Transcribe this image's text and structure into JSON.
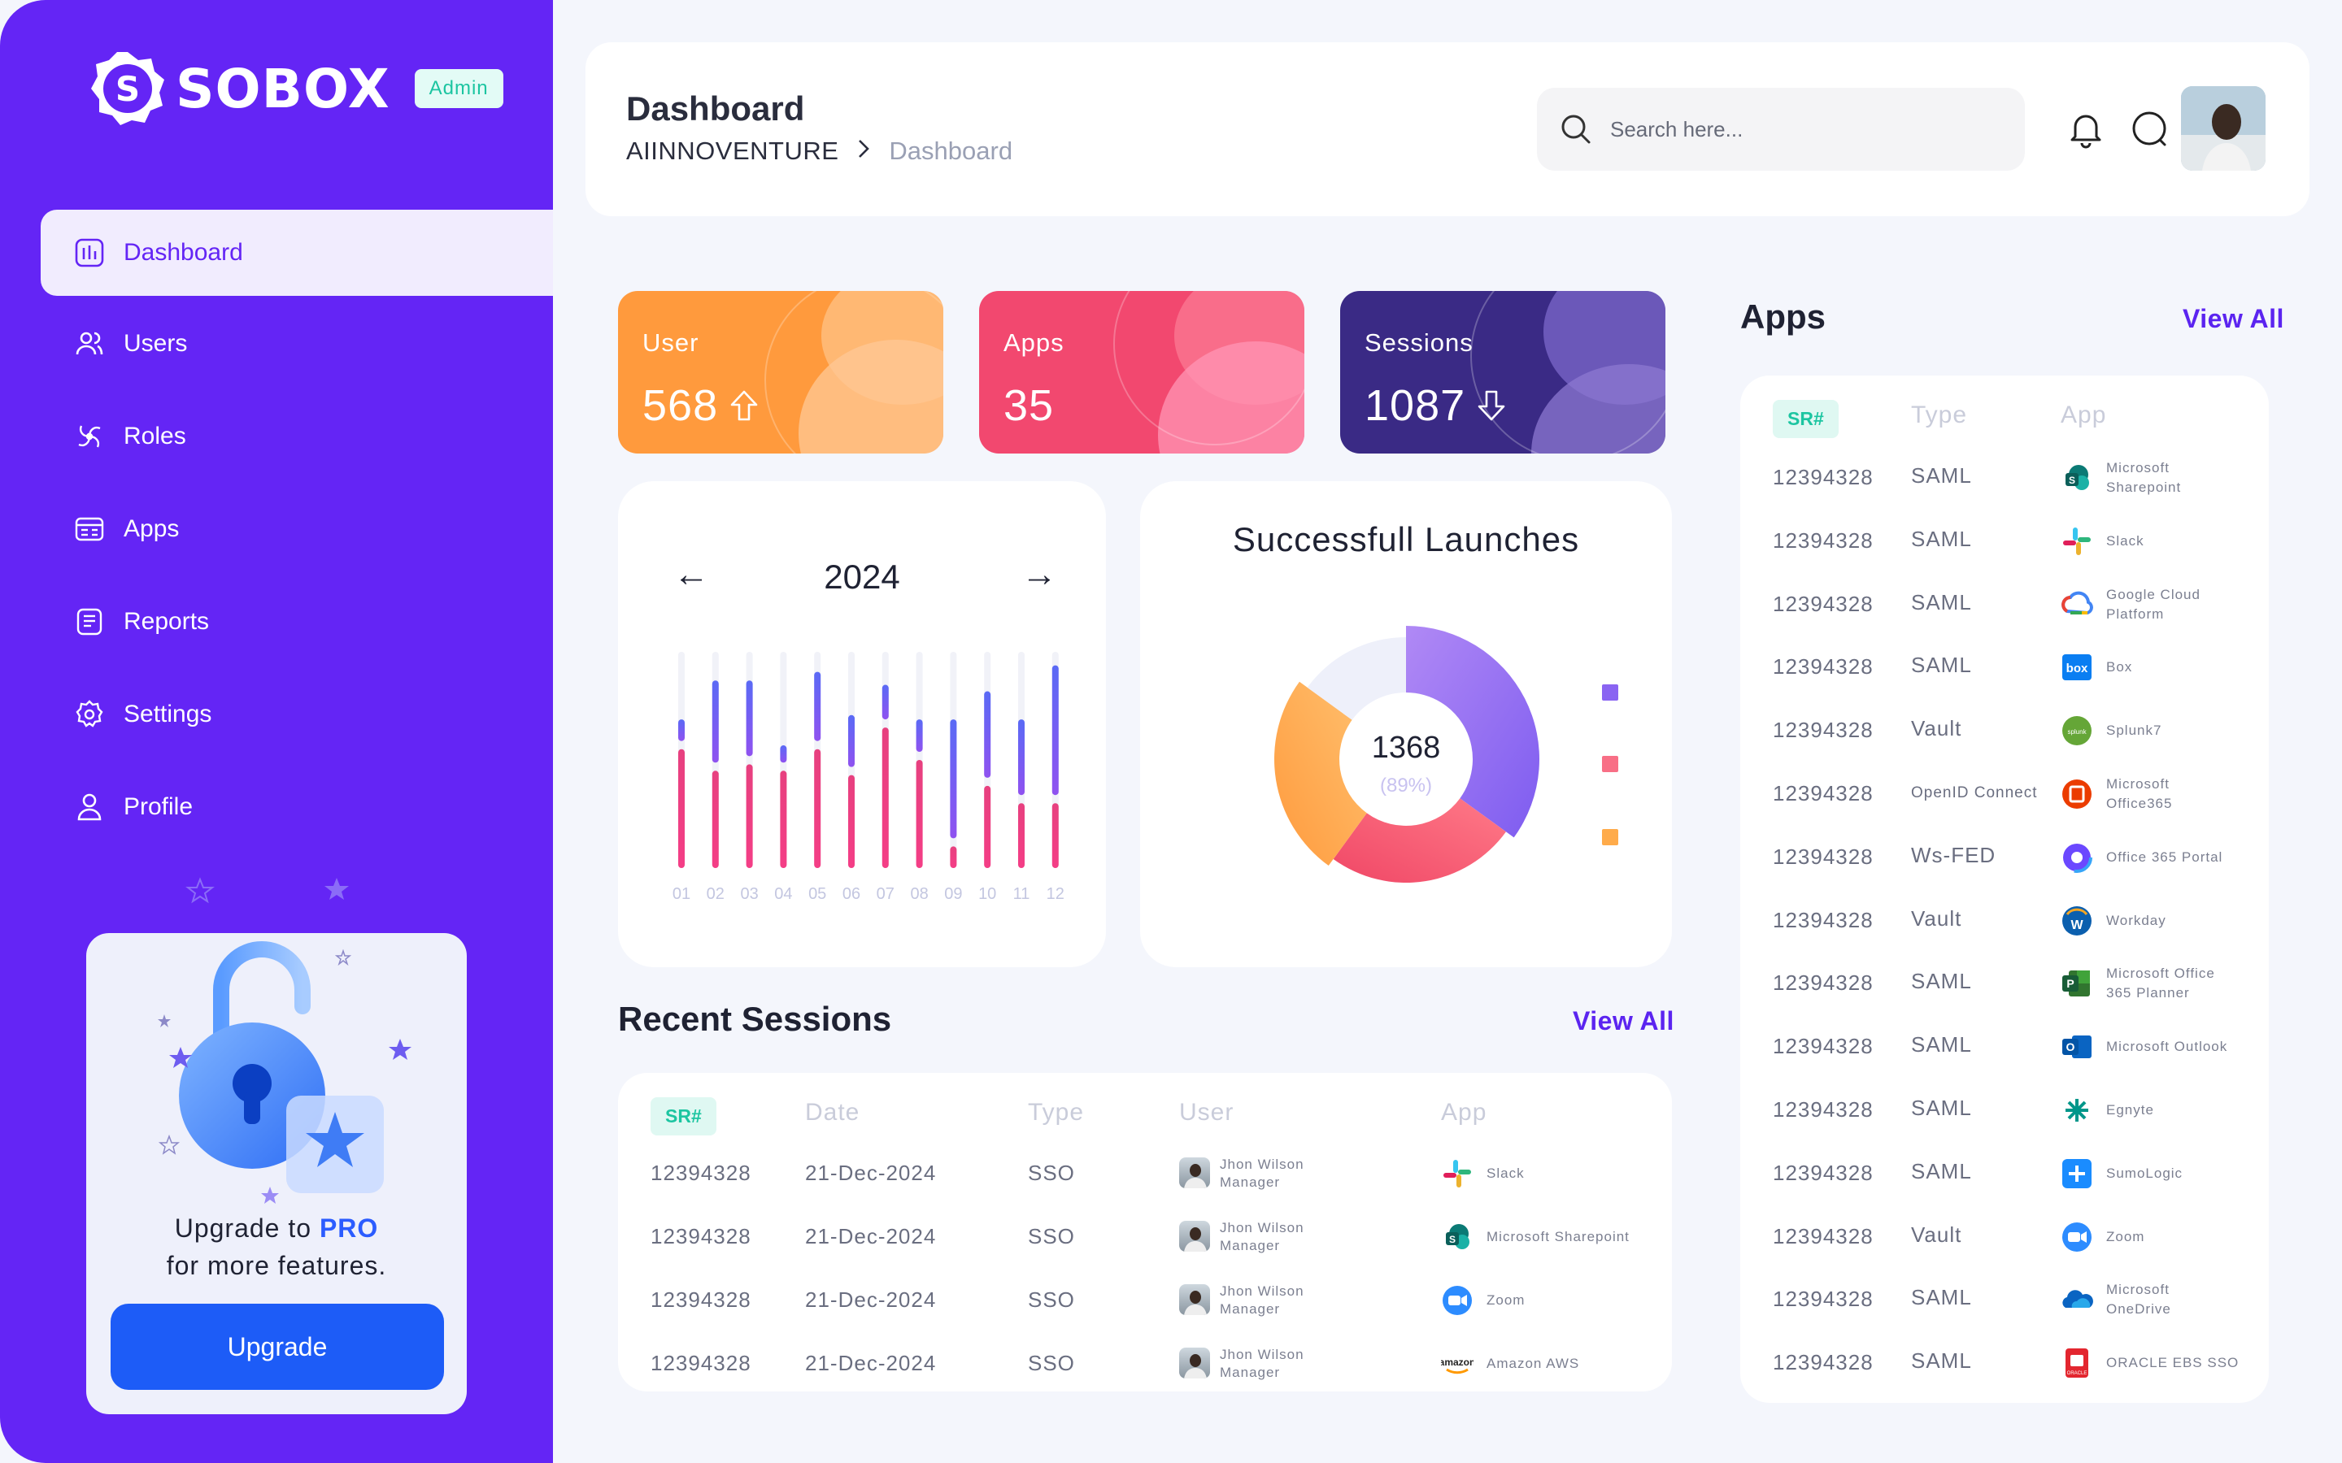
{
  "brand": {
    "name": "SOBOX",
    "role_badge": "Admin",
    "logo_letter": "S"
  },
  "sidebar": {
    "items": [
      {
        "label": "Dashboard",
        "icon": "chart-icon"
      },
      {
        "label": "Users",
        "icon": "users-icon"
      },
      {
        "label": "Roles",
        "icon": "roles-icon"
      },
      {
        "label": "Apps",
        "icon": "apps-icon"
      },
      {
        "label": "Reports",
        "icon": "reports-icon"
      },
      {
        "label": "Settings",
        "icon": "gear-icon"
      },
      {
        "label": "Profile",
        "icon": "profile-icon"
      }
    ],
    "upgrade": {
      "line1_prefix": "Upgrade to ",
      "line1_emph": "PRO",
      "line2": "for more features.",
      "button": "Upgrade"
    }
  },
  "header": {
    "title": "Dashboard",
    "breadcrumb_root": "AIINNOVENTURE",
    "breadcrumb_current": "Dashboard",
    "search_placeholder": "Search here..."
  },
  "stats": [
    {
      "label": "User",
      "value": "568",
      "trend": "up"
    },
    {
      "label": "Apps",
      "value": "35",
      "trend": "none"
    },
    {
      "label": "Sessions",
      "value": "1087",
      "trend": "down"
    }
  ],
  "calendar": {
    "year": "2024",
    "prev_arrow": "←",
    "next_arrow": "→"
  },
  "chart_data": [
    {
      "type": "bar",
      "title": "",
      "categories": [
        "01",
        "02",
        "03",
        "04",
        "05",
        "06",
        "07",
        "08",
        "09",
        "10",
        "11",
        "12"
      ],
      "series": [
        {
          "values": [
            55,
            45,
            48,
            45,
            55,
            43,
            65,
            50,
            10,
            38,
            30,
            30
          ]
        },
        {
          "values": [
            10,
            38,
            35,
            8,
            32,
            24,
            16,
            15,
            55,
            40,
            35,
            60
          ]
        }
      ],
      "ylim": [
        0,
        100
      ]
    },
    {
      "type": "pie",
      "title": "Successfull Launches",
      "center_value": "1368",
      "center_sub": "(89%)",
      "slices": [
        {
          "value": 35,
          "color": "#9b7bf2"
        },
        {
          "value": 25,
          "color": "#f2607a"
        },
        {
          "value": 25,
          "color": "#ffad4d"
        },
        {
          "value": 15,
          "color": "#eef0fa"
        }
      ]
    }
  ],
  "recent_sessions": {
    "title": "Recent Sessions",
    "view_all": "View All",
    "headers": {
      "sr": "SR#",
      "date": "Date",
      "type": "Type",
      "user": "User",
      "app": "App"
    },
    "rows": [
      {
        "sr": "12394328",
        "date": "21-Dec-2024",
        "type": "SSO",
        "user_name": "Jhon Wilson",
        "user_role": "Manager",
        "app": "Slack"
      },
      {
        "sr": "12394328",
        "date": "21-Dec-2024",
        "type": "SSO",
        "user_name": "Jhon Wilson",
        "user_role": "Manager",
        "app": "Microsoft Sharepoint"
      },
      {
        "sr": "12394328",
        "date": "21-Dec-2024",
        "type": "SSO",
        "user_name": "Jhon Wilson",
        "user_role": "Manager",
        "app": "Zoom"
      },
      {
        "sr": "12394328",
        "date": "21-Dec-2024",
        "type": "SSO",
        "user_name": "Jhon Wilson",
        "user_role": "Manager",
        "app": "Amazon AWS"
      }
    ]
  },
  "apps_panel": {
    "title": "Apps",
    "view_all": "View All",
    "headers": {
      "sr": "SR#",
      "type": "Type",
      "app": "App"
    },
    "rows": [
      {
        "sr": "12394328",
        "type": "SAML",
        "app": "Microsoft Sharepoint",
        "app_l1": "Microsoft",
        "app_l2": "Sharepoint",
        "icon": "sharepoint-icon"
      },
      {
        "sr": "12394328",
        "type": "SAML",
        "app_l1": "Slack",
        "app_l2": "",
        "icon": "slack-icon"
      },
      {
        "sr": "12394328",
        "type": "SAML",
        "app_l1": "Google Cloud",
        "app_l2": "Platform",
        "icon": "gcp-icon"
      },
      {
        "sr": "12394328",
        "type": "SAML",
        "app_l1": "Box",
        "app_l2": "",
        "icon": "box-icon"
      },
      {
        "sr": "12394328",
        "type": "Vault",
        "app_l1": "Splunk7",
        "app_l2": "",
        "icon": "splunk-icon"
      },
      {
        "sr": "12394328",
        "type": "OpenID Connect",
        "app_l1": "Microsoft",
        "app_l2": "Office365",
        "icon": "office365-icon"
      },
      {
        "sr": "12394328",
        "type": "Ws-FED",
        "app_l1": "Office 365 Portal",
        "app_l2": "",
        "icon": "office-portal-icon"
      },
      {
        "sr": "12394328",
        "type": "Vault",
        "app_l1": "Workday",
        "app_l2": "",
        "icon": "workday-icon"
      },
      {
        "sr": "12394328",
        "type": "SAML",
        "app_l1": "Microsoft Office",
        "app_l2": "365 Planner",
        "icon": "planner-icon"
      },
      {
        "sr": "12394328",
        "type": "SAML",
        "app_l1": "Microsoft Outlook",
        "app_l2": "",
        "icon": "outlook-icon"
      },
      {
        "sr": "12394328",
        "type": "SAML",
        "app_l1": "Egnyte",
        "app_l2": "",
        "icon": "egnyte-icon"
      },
      {
        "sr": "12394328",
        "type": "SAML",
        "app_l1": "SumoLogic",
        "app_l2": "",
        "icon": "sumologic-icon"
      },
      {
        "sr": "12394328",
        "type": "Vault",
        "app_l1": "Zoom",
        "app_l2": "",
        "icon": "zoom-icon"
      },
      {
        "sr": "12394328",
        "type": "SAML",
        "app_l1": "Microsoft",
        "app_l2": "OneDrive",
        "icon": "onedrive-icon"
      },
      {
        "sr": "12394328",
        "type": "SAML",
        "app_l1": "ORACLE EBS SSO",
        "app_l2": "",
        "icon": "oracle-icon"
      }
    ]
  },
  "colors": {
    "sidebar": "#6425f5",
    "user_card": "#ff9a3d",
    "apps_card": "#f2486f",
    "sessions_card": "#3a2a85",
    "accent": "#5b24f0",
    "upgrade_button": "#1d5cf7"
  }
}
